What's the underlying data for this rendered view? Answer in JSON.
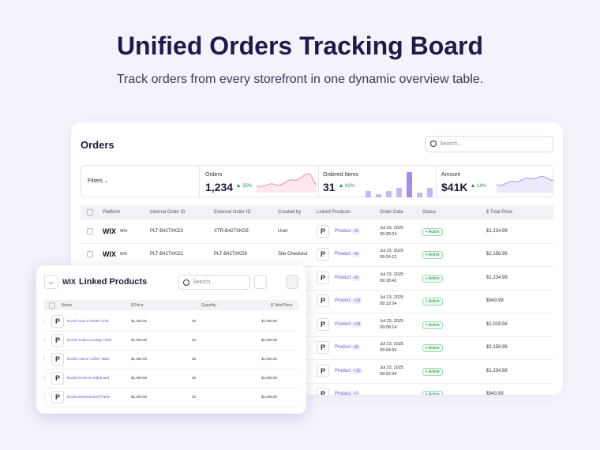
{
  "header": {
    "title": "Unified Orders Tracking Board",
    "subtitle": "Track orders from every storefront in one dynamic overview table."
  },
  "orders": {
    "title": "Orders",
    "search_placeholder": "Search...",
    "filters": "Filters",
    "stats": [
      {
        "label": "Orders",
        "value": "1,234",
        "change": "25%"
      },
      {
        "label": "Ordered Items",
        "value": "31",
        "change": "41%"
      },
      {
        "label": "Amount",
        "value": "$41K",
        "change": "14%"
      }
    ],
    "columns": [
      "Platform",
      "Internal Order ID",
      "External Order ID",
      "Created by",
      "Linked Products",
      "Order Date",
      "Status",
      "$ Total Price"
    ],
    "rows": [
      {
        "platform": "WIX",
        "platform_name": "WIX",
        "internal_id": "PLT-B427XKD3",
        "external_id": "XTR-B427XKD9",
        "created_by": "User",
        "thumb": "P",
        "product": "Product",
        "more": "+5",
        "date": "Jul 23, 2025",
        "time": "09:28:24",
        "status": "Active",
        "total": "$1,234.99"
      },
      {
        "platform": "WIX",
        "platform_name": "WIX",
        "internal_id": "PLT-B427XKD2",
        "external_id": "PLT-B427XKD8",
        "created_by": "Site Checkout",
        "thumb": "P",
        "product": "Product",
        "more": "+8",
        "date": "Jul 23, 2025",
        "time": "09:24:12",
        "status": "Active",
        "total": "$2,158.99"
      },
      {
        "thumb": "P",
        "product": "Product",
        "more": "+5",
        "date": "Jul 23, 2025",
        "time": "09:18:42",
        "status": "Active",
        "total": "$1,234.99"
      },
      {
        "thumb": "P",
        "product": "Product",
        "more": "+12",
        "date": "Jul 23, 2025",
        "time": "09:12:24",
        "status": "Active",
        "total": "$943.99"
      },
      {
        "thumb": "P",
        "product": "Product",
        "more": "+14",
        "date": "Jul 23, 2025",
        "time": "09:08:14",
        "status": "Active",
        "total": "$1,018.56"
      },
      {
        "thumb": "P",
        "product": "Product",
        "more": "+8",
        "date": "Jul 23, 2025",
        "time": "09:04:56",
        "status": "Active",
        "total": "$2,158.99"
      },
      {
        "thumb": "P",
        "product": "Product",
        "more": "+10",
        "date": "Jul 23, 2025",
        "time": "09:02:34",
        "status": "Active",
        "total": "$1,234.99"
      },
      {
        "thumb": "P",
        "product": "Product",
        "more": "+7",
        "status": "Active",
        "total": "$943.99"
      }
    ]
  },
  "linked_products": {
    "brand": "WIX",
    "title": "Linked Products",
    "search_placeholder": "Search...",
    "columns": [
      "Name",
      "$ Price",
      "Quantity",
      "$ Total Price"
    ],
    "rows": [
      {
        "thumb": "P",
        "name": "Nordic Aura 3-Seater Sofa",
        "price": "$1,000.00",
        "quantity": "25",
        "total": "$1,000.00"
      },
      {
        "thumb": "P",
        "name": "Nordic Solace Lounge Chair",
        "price": "$1,000.00",
        "quantity": "25",
        "total": "$1,000.00"
      },
      {
        "thumb": "P",
        "name": "Nordic Haven Coffee Table",
        "price": "$1,000.00",
        "quantity": "25",
        "total": "$1,000.00"
      },
      {
        "thumb": "P",
        "name": "Nordic Essence Sideboard",
        "price": "$1,000.00",
        "quantity": "25",
        "total": "$1,000.00"
      },
      {
        "thumb": "P",
        "name": "Nordic Ethereal Bed Frame",
        "price": "$1,000.00",
        "quantity": "25",
        "total": "$1,000.00"
      }
    ]
  }
}
